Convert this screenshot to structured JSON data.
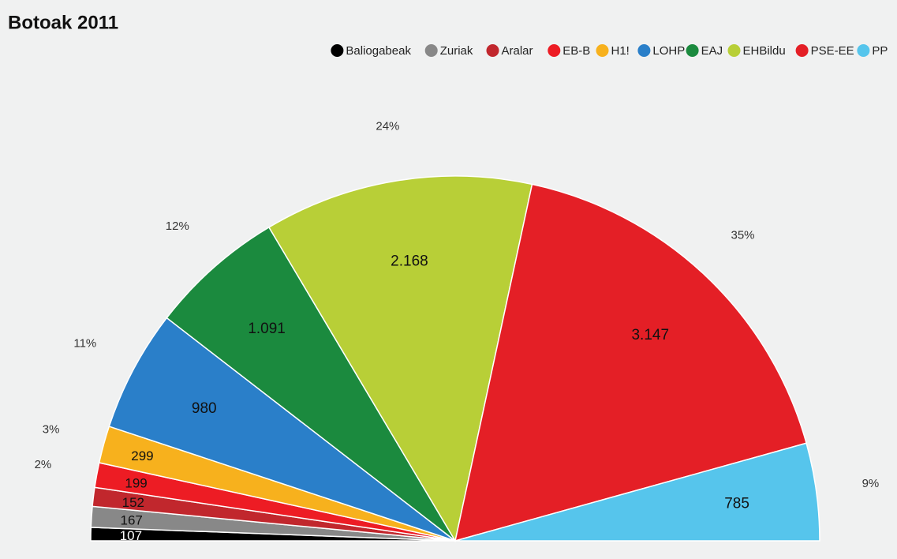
{
  "chart_data": {
    "type": "semipie",
    "title": "Botoak 2011",
    "categories": [
      "Baliogabeak",
      "Zuriak",
      "Aralar",
      "EB-B",
      "H1!",
      "LOHP",
      "EAJ",
      "EHBildu",
      "PSE-EE",
      "PP"
    ],
    "values": [
      107,
      167,
      152,
      199,
      299,
      980,
      1091,
      2168,
      3147,
      785
    ],
    "value_labels": [
      "107",
      "167",
      "152",
      "199",
      "299",
      "980",
      "1.091",
      "2.168",
      "3.147",
      "785"
    ],
    "percent_labels": [
      null,
      null,
      null,
      "2%",
      "3%",
      "11%",
      "12%",
      "24%",
      "35%",
      "9%"
    ],
    "colors": [
      "#000000",
      "#888888",
      "#c1272d",
      "#ed1c24",
      "#f7b11d",
      "#2a7fc9",
      "#1b8a3e",
      "#b8cf37",
      "#e41f26",
      "#56c5ec"
    ],
    "legend": "top-right"
  }
}
